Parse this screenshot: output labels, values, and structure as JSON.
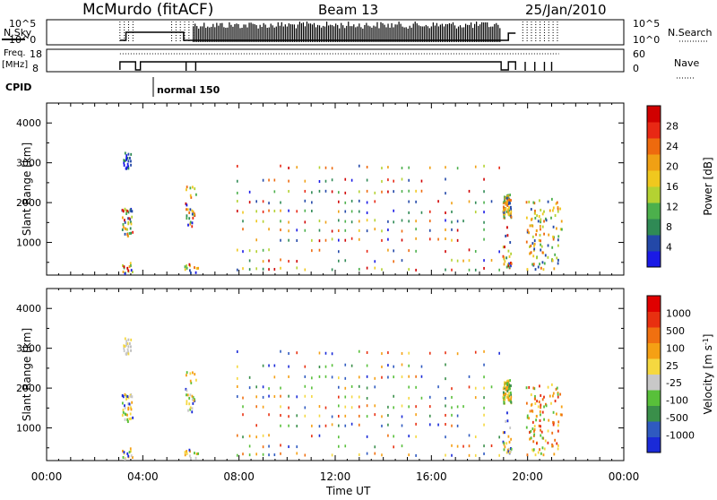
{
  "header": {
    "station": "McMurdo (fitACF)",
    "beam": "Beam 13",
    "date": "25/Jan/2010"
  },
  "top_panels": {
    "nsky_label": "N.Sky",
    "nsky_ticks": [
      "10^5",
      "10^0"
    ],
    "nsearch_ticks": [
      "10^5",
      "10^0"
    ],
    "nsearch_label": "N.Search",
    "freq_label_1": "Freq.",
    "freq_label_2": "[MHz]",
    "freq_ticks": [
      "18",
      "8"
    ],
    "nave_ticks": [
      "60",
      "0"
    ],
    "nave_label": "Nave",
    "cpid_label": "CPID",
    "cpid_mode": "normal 150"
  },
  "chart_data": [
    {
      "type": "heatmap",
      "panel": "power",
      "ylabel": "Slant Range [km]",
      "xlabel": "Time UT",
      "xlim_hours": [
        0,
        24
      ],
      "ylim_km": [
        180,
        4500
      ],
      "x_ticks": [
        "00:00",
        "04:00",
        "08:00",
        "12:00",
        "16:00",
        "20:00",
        "00:00"
      ],
      "y_ticks": [
        "4000",
        "3000",
        "2000",
        "1000"
      ],
      "colorbar": {
        "label": "Power [dB]",
        "ticks": [
          "28",
          "24",
          "20",
          "16",
          "12",
          "8",
          "4"
        ],
        "colors": [
          "#1a1ae6",
          "#2348a8",
          "#2f8a55",
          "#4cb04c",
          "#b4d232",
          "#f0c81e",
          "#f0a014",
          "#ee6a0e",
          "#e82814",
          "#d00000"
        ]
      },
      "scatter_bands_km": [
        320,
        540,
        780,
        1060,
        1300,
        1520,
        1760,
        2000,
        2250,
        2550,
        2880
      ],
      "activity_windows_hours": [
        [
          3.1,
          3.6
        ],
        [
          5.7,
          6.4
        ],
        [
          7.8,
          18.9
        ],
        [
          18.9,
          19.4
        ],
        [
          19.8,
          21.4
        ]
      ]
    },
    {
      "type": "heatmap",
      "panel": "velocity",
      "ylabel": "Slant Range [km]",
      "xlabel": "Time UT",
      "xlim_hours": [
        0,
        24
      ],
      "ylim_km": [
        180,
        4500
      ],
      "x_ticks": [
        "00:00",
        "04:00",
        "08:00",
        "12:00",
        "16:00",
        "20:00",
        "00:00"
      ],
      "y_ticks": [
        "4000",
        "3000",
        "2000",
        "1000"
      ],
      "colorbar": {
        "label": "Velocity [m s-1]",
        "label_main": "Velocity",
        "label_units": "[m s",
        "label_exp": "-1",
        "label_close": "]",
        "ticks": [
          "1000",
          "500",
          "100",
          "25",
          "-25",
          "-100",
          "-500",
          "-1000"
        ],
        "colors": [
          "#1a2ad8",
          "#2f5ac0",
          "#3a8f4a",
          "#58c03a",
          "#c8c8c8",
          "#f5d840",
          "#f5a014",
          "#f07010",
          "#e83010",
          "#e00000"
        ]
      }
    }
  ],
  "xaxis": {
    "title": "Time UT"
  }
}
